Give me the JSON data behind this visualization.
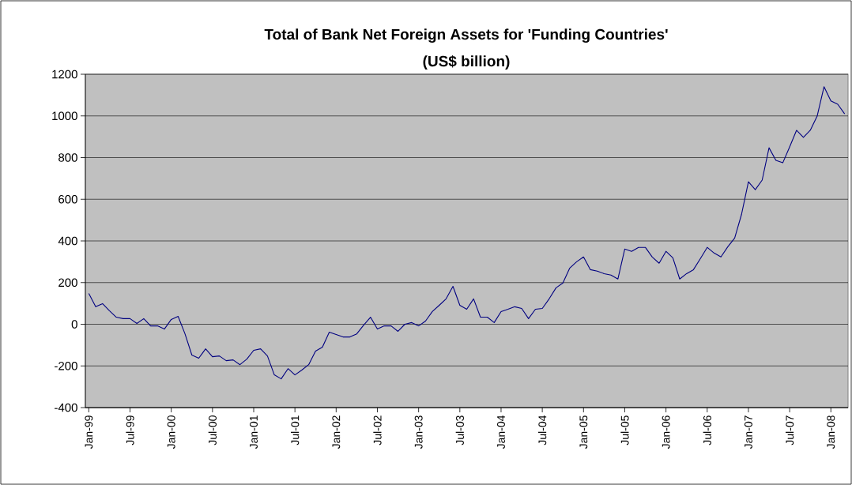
{
  "chart_data": {
    "type": "line",
    "title": "Total of Bank Net Foreign Assets for 'Funding Countries'",
    "subtitle": "(US$ billion)",
    "x": [
      "1999-01",
      "1999-02",
      "1999-03",
      "1999-04",
      "1999-05",
      "1999-06",
      "1999-07",
      "1999-08",
      "1999-09",
      "1999-10",
      "1999-11",
      "1999-12",
      "2000-01",
      "2000-02",
      "2000-03",
      "2000-04",
      "2000-05",
      "2000-06",
      "2000-07",
      "2000-08",
      "2000-09",
      "2000-10",
      "2000-11",
      "2000-12",
      "2001-01",
      "2001-02",
      "2001-03",
      "2001-04",
      "2001-05",
      "2001-06",
      "2001-07",
      "2001-08",
      "2001-09",
      "2001-10",
      "2001-11",
      "2001-12",
      "2002-01",
      "2002-02",
      "2002-03",
      "2002-04",
      "2002-05",
      "2002-06",
      "2002-07",
      "2002-08",
      "2002-09",
      "2002-10",
      "2002-11",
      "2002-12",
      "2003-01",
      "2003-02",
      "2003-03",
      "2003-04",
      "2003-05",
      "2003-06",
      "2003-07",
      "2003-08",
      "2003-09",
      "2003-10",
      "2003-11",
      "2003-12",
      "2004-01",
      "2004-02",
      "2004-03",
      "2004-04",
      "2004-05",
      "2004-06",
      "2004-07",
      "2004-08",
      "2004-09",
      "2004-10",
      "2004-11",
      "2004-12",
      "2005-01",
      "2005-02",
      "2005-03",
      "2005-04",
      "2005-05",
      "2005-06",
      "2005-07",
      "2005-08",
      "2005-09",
      "2005-10",
      "2005-11",
      "2005-12",
      "2006-01",
      "2006-02",
      "2006-03",
      "2006-04",
      "2006-05",
      "2006-06",
      "2006-07",
      "2006-08",
      "2006-09",
      "2006-10",
      "2006-11",
      "2006-12",
      "2007-01",
      "2007-02",
      "2007-03",
      "2007-04",
      "2007-05",
      "2007-06",
      "2007-07",
      "2007-08",
      "2007-09",
      "2007-10",
      "2007-11",
      "2007-12",
      "2008-01",
      "2008-02",
      "2008-03"
    ],
    "series": [
      {
        "color": "#000080",
        "values": [
          148,
          84,
          99,
          65,
          34,
          27,
          27,
          4,
          27,
          -8,
          -8,
          -23,
          23,
          38,
          -46,
          -148,
          -163,
          -118,
          -156,
          -152,
          -175,
          -171,
          -194,
          -167,
          -125,
          -118,
          -152,
          -243,
          -262,
          -213,
          -243,
          -220,
          -194,
          -129,
          -110,
          -38,
          -49,
          -61,
          -61,
          -46,
          -4,
          34,
          -23,
          -8,
          -8,
          -34,
          0,
          8,
          -8,
          15,
          61,
          91,
          122,
          182,
          91,
          72,
          122,
          34,
          34,
          8,
          61,
          72,
          84,
          76,
          27,
          72,
          76,
          122,
          175,
          198,
          270,
          300,
          323,
          262,
          255,
          243,
          236,
          217,
          361,
          350,
          369,
          369,
          323,
          293,
          350,
          319,
          217,
          243,
          262,
          315,
          369,
          342,
          323,
          372,
          414,
          528,
          684,
          646,
          692,
          847,
          787,
          775,
          851,
          931,
          897,
          931,
          999,
          1140,
          1072,
          1056,
          1010
        ]
      }
    ],
    "xlim": [
      "1999-01",
      "2008-03"
    ],
    "xticks": [
      {
        "value": "1999-01",
        "label": "Jan-99"
      },
      {
        "value": "1999-07",
        "label": "Jul-99"
      },
      {
        "value": "2000-01",
        "label": "Jan-00"
      },
      {
        "value": "2000-07",
        "label": "Jul-00"
      },
      {
        "value": "2001-01",
        "label": "Jan-01"
      },
      {
        "value": "2001-07",
        "label": "Jul-01"
      },
      {
        "value": "2002-01",
        "label": "Jan-02"
      },
      {
        "value": "2002-07",
        "label": "Jul-02"
      },
      {
        "value": "2003-01",
        "label": "Jan-03"
      },
      {
        "value": "2003-07",
        "label": "Jul-03"
      },
      {
        "value": "2004-01",
        "label": "Jan-04"
      },
      {
        "value": "2004-07",
        "label": "Jul-04"
      },
      {
        "value": "2005-01",
        "label": "Jan-05"
      },
      {
        "value": "2005-07",
        "label": "Jul-05"
      },
      {
        "value": "2006-01",
        "label": "Jan-06"
      },
      {
        "value": "2006-07",
        "label": "Jul-06"
      },
      {
        "value": "2007-01",
        "label": "Jan-07"
      },
      {
        "value": "2007-07",
        "label": "Jul-07"
      },
      {
        "value": "2008-01",
        "label": "Jan-08"
      }
    ],
    "ylim": [
      -400,
      1200
    ],
    "yticks": [
      -400,
      -200,
      0,
      200,
      400,
      600,
      800,
      1000,
      1200
    ],
    "grid": "y"
  }
}
